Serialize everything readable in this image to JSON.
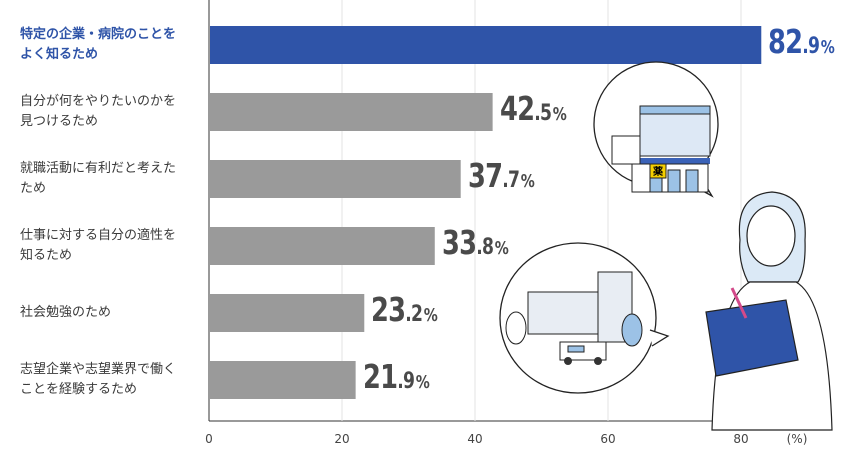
{
  "chart_data": {
    "type": "bar",
    "orientation": "horizontal",
    "categories": [
      "特定の企業・病院のことを\nよく知るため",
      "自分が何をやりたいのかを\n見つけるため",
      "就職活動に有利だと考えた\nため",
      "仕事に対する自分の適性を\n知るため",
      "社会勉強のため",
      "志望企業や志望業界で働く\nことを経験するため"
    ],
    "values": [
      82.9,
      42.5,
      37.7,
      33.8,
      23.2,
      21.9
    ],
    "value_labels": [
      {
        "int": "82",
        "dec": ".9",
        "unit": "%"
      },
      {
        "int": "42",
        "dec": ".5",
        "unit": "%"
      },
      {
        "int": "37",
        "dec": ".7",
        "unit": "%"
      },
      {
        "int": "33",
        "dec": ".8",
        "unit": "%"
      },
      {
        "int": "23",
        "dec": ".2",
        "unit": "%"
      },
      {
        "int": "21",
        "dec": ".9",
        "unit": "%"
      }
    ],
    "xlim": [
      0,
      80
    ],
    "x_ticks": [
      "0",
      "20",
      "40",
      "60",
      "80"
    ],
    "x_unit": "(%)",
    "highlight_index": 0,
    "colors": {
      "highlight": "#2f54a8",
      "default": "#9a9a9a",
      "label_default": "#3a3a3a",
      "value_default": "#4a4a4a"
    }
  },
  "illustrations": [
    "pharmacy-building-icon",
    "hospital-ambulance-icon",
    "woman-with-notebook-icon"
  ]
}
